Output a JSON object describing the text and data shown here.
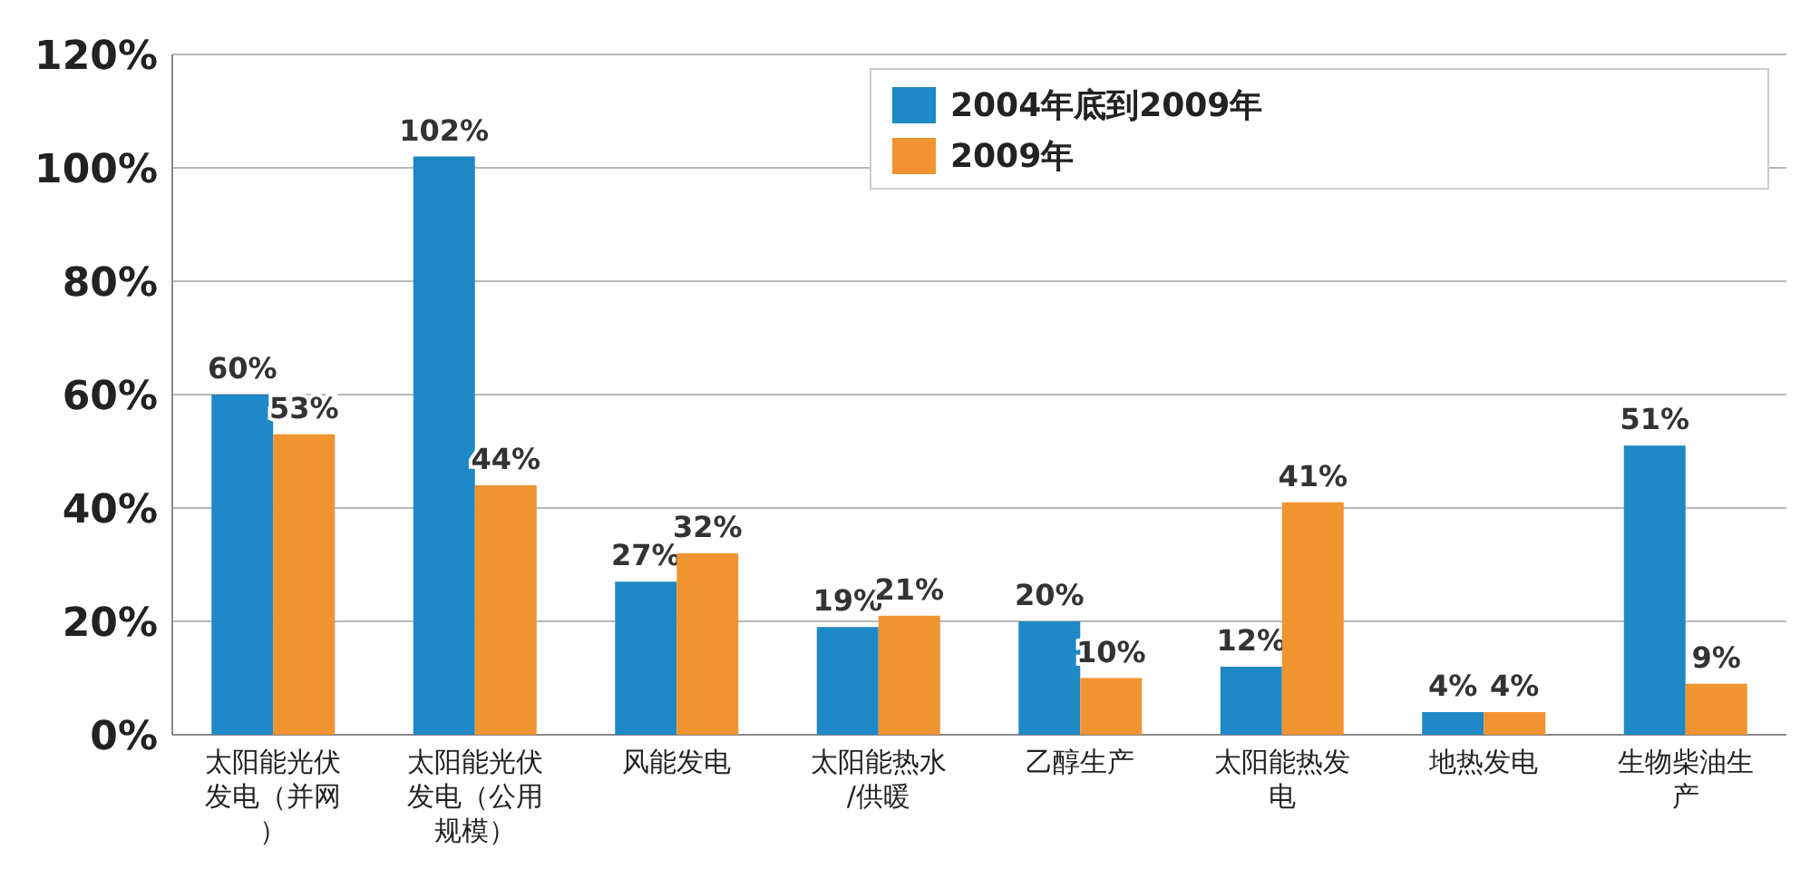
{
  "chart_data": {
    "type": "bar",
    "categories": [
      "太阳能光伏发电（并网）",
      "太阳能光伏发电（公用规模）",
      "风能发电",
      "太阳能热水/供暖",
      "乙醇生产",
      "太阳能热发电",
      "地热发电",
      "生物柴油生产"
    ],
    "series": [
      {
        "name": "2004年底到2009年",
        "color": "#1f88c6",
        "values": [
          60,
          102,
          27,
          19,
          20,
          12,
          4,
          51
        ],
        "value_labels": [
          "60%",
          "102%",
          "27%",
          "19%",
          "20%",
          "12%",
          "4%",
          "51%"
        ]
      },
      {
        "name": "2009年",
        "color": "#ef9430",
        "values": [
          53,
          44,
          32,
          21,
          10,
          41,
          4,
          9
        ],
        "value_labels": [
          "53%",
          "44%",
          "32%",
          "21%",
          "10%",
          "41%",
          "4%",
          "9%"
        ]
      }
    ],
    "ylim": [
      0,
      120
    ],
    "yticks": [
      {
        "value": 0,
        "label": "0%"
      },
      {
        "value": 20,
        "label": "20%"
      },
      {
        "value": 40,
        "label": "40%"
      },
      {
        "value": 60,
        "label": "60%"
      },
      {
        "value": 80,
        "label": "80%"
      },
      {
        "value": 100,
        "label": "100%"
      },
      {
        "value": 120,
        "label": "120%"
      }
    ],
    "grid": "y",
    "legend": "top right"
  }
}
